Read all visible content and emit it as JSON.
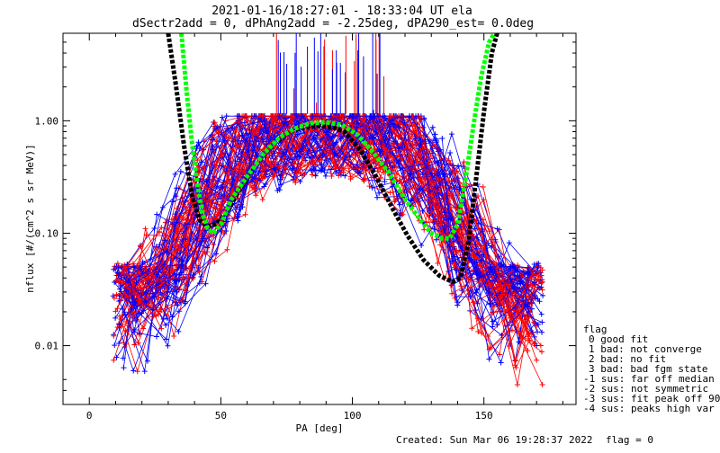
{
  "chart_data": {
    "type": "scatter",
    "title_lines": [
      "2021-01-16/18:27:01 - 18:33:04 UT ela",
      "dSectr2add = 0, dPhAng2add = -2.25deg, dPA290_est=    0.0deg"
    ],
    "xlabel": "PA [deg]",
    "ylabel": "nflux [#/(cm^2 s sr MeV)]",
    "xlim": [
      -10,
      185
    ],
    "ylim": [
      0.003,
      6
    ],
    "yscale": "log",
    "grid": false,
    "x_ticks": [
      0,
      50,
      100,
      150
    ],
    "x_tick_labels": [
      "0",
      "50",
      "100",
      "150"
    ],
    "y_ticks": [
      0.01,
      0.1,
      1.0
    ],
    "y_tick_labels": [
      "0.01",
      "0.10",
      "1.00"
    ],
    "colors": {
      "red": "#ff0000",
      "blue": "#0000ff",
      "black": "#000000",
      "green": "#00ff00"
    },
    "series": [
      {
        "color": "#000000",
        "style": "thick dashed",
        "x": [
          30,
          33,
          36,
          39,
          42,
          45,
          48,
          52,
          57,
          63,
          70,
          76,
          82,
          87,
          92,
          97,
          103,
          109,
          115,
          121,
          127,
          133,
          138,
          141,
          144,
          147,
          150,
          153,
          155
        ],
        "y": [
          6,
          2.0,
          0.6,
          0.22,
          0.13,
          0.115,
          0.12,
          0.15,
          0.24,
          0.4,
          0.62,
          0.8,
          0.88,
          0.9,
          0.88,
          0.8,
          0.55,
          0.32,
          0.17,
          0.095,
          0.058,
          0.042,
          0.037,
          0.04,
          0.08,
          0.3,
          1.2,
          4.0,
          6
        ]
      },
      {
        "color": "#00ff00",
        "style": "thick dashed",
        "x": [
          35,
          37,
          39,
          41,
          43,
          45,
          47,
          50,
          54,
          60,
          66,
          72,
          78,
          84,
          90,
          96,
          102,
          108,
          114,
          120,
          126,
          130,
          134,
          137,
          140,
          143,
          146,
          149,
          152,
          154
        ],
        "y": [
          6,
          1.8,
          0.65,
          0.28,
          0.15,
          0.11,
          0.1,
          0.12,
          0.2,
          0.32,
          0.5,
          0.7,
          0.85,
          0.95,
          0.97,
          0.92,
          0.75,
          0.52,
          0.34,
          0.2,
          0.13,
          0.1,
          0.09,
          0.09,
          0.12,
          0.3,
          0.9,
          2.5,
          5.0,
          6
        ]
      }
    ],
    "legend": {
      "position": "right",
      "title": "flag",
      "entries": [
        "0 good fit",
        "1 bad: not converge",
        "2 bad: no fit",
        "3 bad: bad fgm state",
        "-1 sus: far off median",
        "-2 sus: not symmetric",
        "-3 sus: fit peak off 90",
        "-4 sus: peaks high var"
      ]
    },
    "footer": {
      "created": "Created: Sun Mar 06 19:28:37 2022",
      "flag": "flag = 0"
    }
  }
}
